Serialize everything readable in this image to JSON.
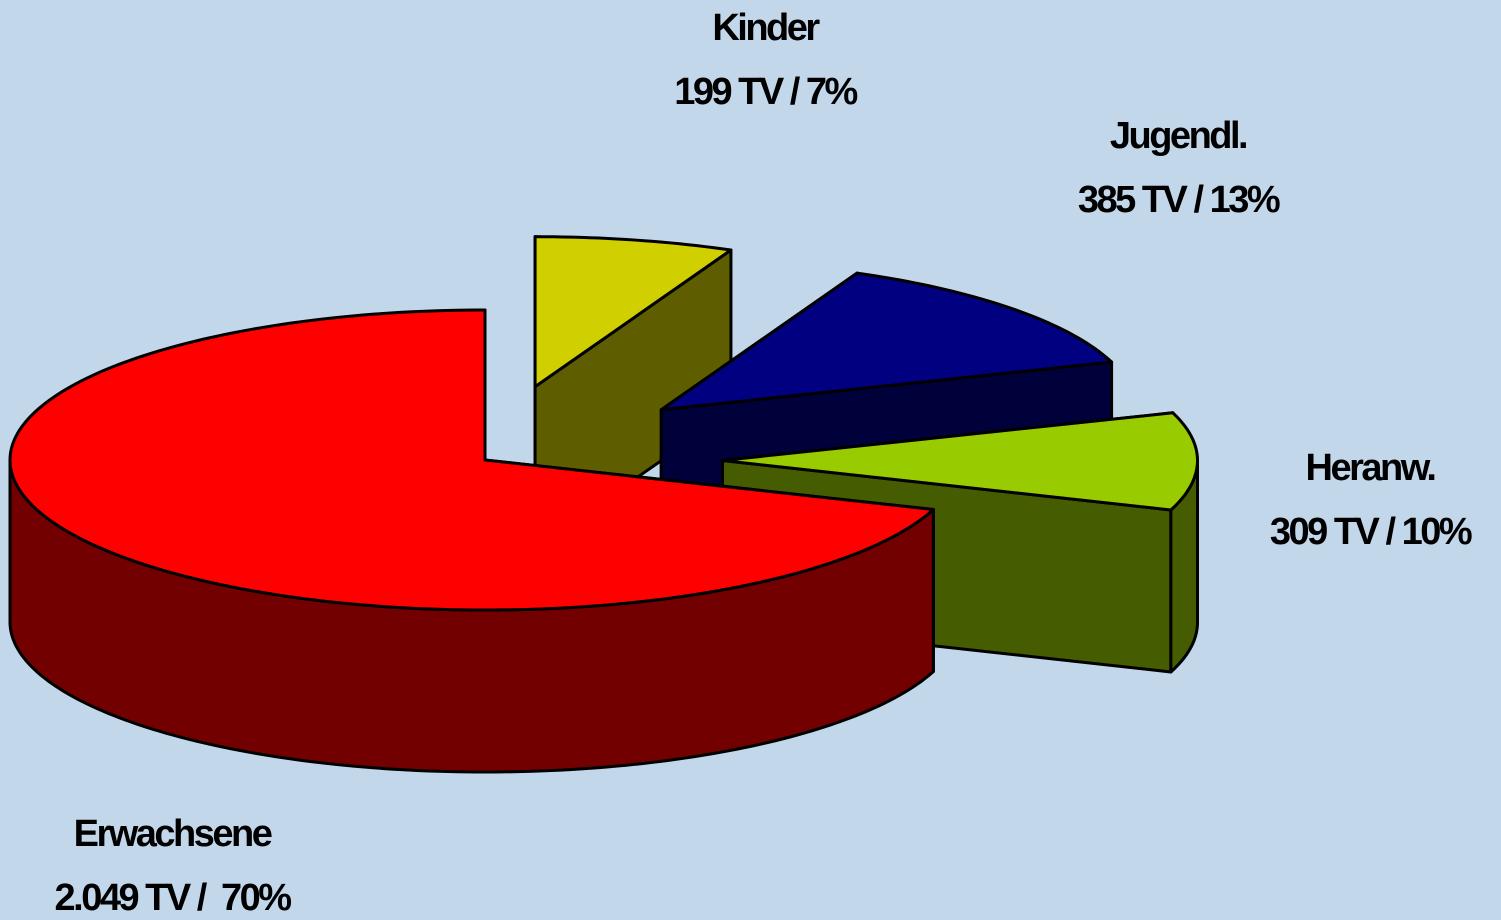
{
  "chart_data": {
    "type": "pie",
    "categories": [
      "Kinder",
      "Jugendl.",
      "Heranw.",
      "Erwachsene"
    ],
    "values": [
      199,
      385,
      309,
      2049
    ],
    "value_labels": [
      "199 TV / 7%",
      "385 TV / 13%",
      "309 TV / 10%",
      "2.049 TV /  70%"
    ],
    "colors": [
      "#d0d000",
      "#000080",
      "#99cc00",
      "#ff0000"
    ]
  }
}
